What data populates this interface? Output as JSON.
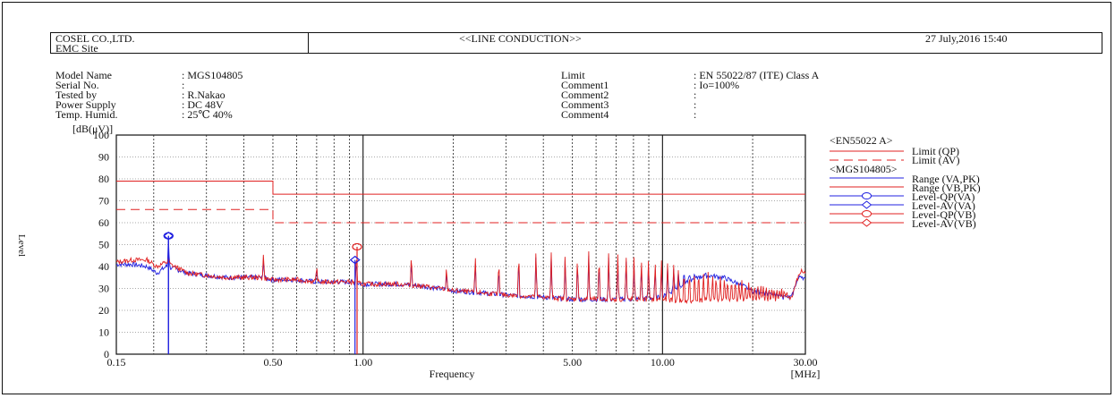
{
  "header": {
    "company": "COSEL CO.,LTD.",
    "site": "EMC Site",
    "title": "<<LINE CONDUCTION>>",
    "datetime": "27 July,2016 15:40"
  },
  "info_left": [
    {
      "label": "Model Name",
      "value": ": MGS104805"
    },
    {
      "label": "Serial No.",
      "value": ":"
    },
    {
      "label": "Tested by",
      "value": ": R.Nakao"
    },
    {
      "label": "Power Supply",
      "value": ": DC 48V"
    },
    {
      "label": "Temp. Humid.",
      "value": ": 25℃ 40%"
    }
  ],
  "info_right": [
    {
      "label": "Limit",
      "value": ": EN 55022/87 (ITE) Class A"
    },
    {
      "label": "Comment1",
      "value": ": Io=100%"
    },
    {
      "label": "Comment2",
      "value": ":"
    },
    {
      "label": "Comment3",
      "value": ":"
    },
    {
      "label": "Comment4",
      "value": ":"
    }
  ],
  "legend": {
    "group1_title": "<EN55022 A>",
    "group2_title": "<MGS104805>",
    "items": [
      {
        "label": "Limit (QP)",
        "color": "#e02020",
        "style": "solid",
        "marker": "none"
      },
      {
        "label": "Limit (AV)",
        "color": "#e02020",
        "style": "dashed",
        "marker": "none"
      },
      {
        "label": "Range (VA,PK)",
        "color": "#2020e0",
        "style": "solid",
        "marker": "none"
      },
      {
        "label": "Range (VB,PK)",
        "color": "#e02020",
        "style": "solid",
        "marker": "none"
      },
      {
        "label": "Level-QP(VA)",
        "color": "#2020e0",
        "style": "solid",
        "marker": "circle"
      },
      {
        "label": "Level-AV(VA)",
        "color": "#2020e0",
        "style": "solid",
        "marker": "diamond"
      },
      {
        "label": "Level-QP(VB)",
        "color": "#e02020",
        "style": "solid",
        "marker": "circle"
      },
      {
        "label": "Level-AV(VB)",
        "color": "#e02020",
        "style": "solid",
        "marker": "diamond"
      }
    ]
  },
  "chart_data": {
    "type": "line",
    "xlabel": "Frequency",
    "xunit": "[MHz]",
    "ylabel_unit": "[dB(μV)]",
    "ylabel": "Level",
    "xscale": "log",
    "xlim": [
      0.15,
      30
    ],
    "ylim": [
      0,
      100
    ],
    "x_ticks": [
      0.15,
      0.5,
      1.0,
      5.0,
      10.0,
      30.0
    ],
    "x_tick_labels": [
      "0.15",
      "0.50",
      "1.00",
      "5.00",
      "10.00",
      "30.00"
    ],
    "y_ticks": [
      0,
      10,
      20,
      30,
      40,
      50,
      60,
      70,
      80,
      90,
      100
    ],
    "y_tick_labels": [
      "0",
      "10",
      "20",
      "30",
      "40",
      "50",
      "60",
      "70",
      "80",
      "90",
      "100"
    ],
    "limits": [
      {
        "name": "Limit (QP)",
        "points": [
          [
            0.15,
            79
          ],
          [
            0.5,
            79
          ],
          [
            0.5,
            73
          ],
          [
            30,
            73
          ]
        ]
      },
      {
        "name": "Limit (AV)",
        "points": [
          [
            0.15,
            66
          ],
          [
            0.5,
            66
          ],
          [
            0.5,
            60
          ],
          [
            30,
            60
          ]
        ]
      }
    ],
    "series": [
      {
        "name": "Range (VA,PK)",
        "color": "#2020e0",
        "points": [
          [
            0.15,
            41
          ],
          [
            0.17,
            41
          ],
          [
            0.19,
            40
          ],
          [
            0.205,
            37
          ],
          [
            0.22,
            40
          ],
          [
            0.235,
            39
          ],
          [
            0.26,
            37
          ],
          [
            0.3,
            36
          ],
          [
            0.35,
            35
          ],
          [
            0.4,
            35
          ],
          [
            0.45,
            35
          ],
          [
            0.5,
            34
          ],
          [
            0.6,
            34
          ],
          [
            0.7,
            33
          ],
          [
            0.8,
            33
          ],
          [
            0.9,
            33
          ],
          [
            1.0,
            32
          ],
          [
            1.3,
            32
          ],
          [
            1.6,
            31
          ],
          [
            2.0,
            29
          ],
          [
            2.5,
            28
          ],
          [
            3.0,
            27
          ],
          [
            4.0,
            26
          ],
          [
            5.0,
            25
          ],
          [
            6.0,
            25
          ],
          [
            8.0,
            25
          ],
          [
            10.0,
            26
          ],
          [
            12.0,
            33
          ],
          [
            14.0,
            36
          ],
          [
            16.0,
            35
          ],
          [
            18.0,
            32
          ],
          [
            20.0,
            29
          ],
          [
            25.0,
            26
          ],
          [
            27.0,
            26
          ],
          [
            28.0,
            33
          ],
          [
            29.0,
            36
          ],
          [
            30.0,
            34
          ]
        ]
      },
      {
        "name": "Range (VB,PK)",
        "color": "#e02020",
        "points": [
          [
            0.15,
            42
          ],
          [
            0.17,
            43
          ],
          [
            0.19,
            43
          ],
          [
            0.205,
            40
          ],
          [
            0.22,
            42
          ],
          [
            0.235,
            40
          ],
          [
            0.26,
            37
          ],
          [
            0.3,
            36
          ],
          [
            0.35,
            35
          ],
          [
            0.4,
            35
          ],
          [
            0.45,
            35
          ],
          [
            0.5,
            34
          ],
          [
            0.6,
            34
          ],
          [
            0.7,
            33
          ],
          [
            0.8,
            33
          ],
          [
            0.9,
            33
          ],
          [
            1.0,
            32
          ],
          [
            1.3,
            32
          ],
          [
            1.6,
            31
          ],
          [
            2.0,
            29
          ],
          [
            2.5,
            28
          ],
          [
            3.0,
            27
          ],
          [
            4.0,
            26
          ],
          [
            5.0,
            25
          ],
          [
            6.0,
            25
          ],
          [
            8.0,
            25
          ],
          [
            10.0,
            25
          ],
          [
            12.0,
            24
          ],
          [
            15.0,
            25
          ],
          [
            20.0,
            25
          ],
          [
            25.0,
            25
          ],
          [
            27.0,
            26
          ],
          [
            28.0,
            33
          ],
          [
            29.0,
            38
          ],
          [
            30.0,
            37
          ]
        ]
      }
    ],
    "peaks": [
      {
        "x": 0.224,
        "va": 54,
        "vb": 45
      },
      {
        "x": 0.465,
        "va": 44,
        "vb": 47
      },
      {
        "x": 0.7,
        "va": 40,
        "vb": 41
      },
      {
        "x": 0.95,
        "va": 44,
        "vb": 48
      },
      {
        "x": 1.45,
        "va": 43,
        "vb": 47
      },
      {
        "x": 1.9,
        "va": 38,
        "vb": 41
      },
      {
        "x": 2.37,
        "va": 43,
        "vb": 46
      },
      {
        "x": 2.84,
        "va": 40,
        "vb": 44
      },
      {
        "x": 3.31,
        "va": 45,
        "vb": 48
      },
      {
        "x": 3.78,
        "va": 46,
        "vb": 48
      },
      {
        "x": 4.25,
        "va": 45,
        "vb": 47
      },
      {
        "x": 4.73,
        "va": 46,
        "vb": 48
      },
      {
        "x": 5.2,
        "va": 44,
        "vb": 46
      },
      {
        "x": 5.67,
        "va": 45,
        "vb": 47
      },
      {
        "x": 6.14,
        "va": 44,
        "vb": 47
      },
      {
        "x": 6.61,
        "va": 45,
        "vb": 47
      },
      {
        "x": 7.09,
        "va": 43,
        "vb": 46
      },
      {
        "x": 7.56,
        "va": 44,
        "vb": 46
      },
      {
        "x": 8.03,
        "va": 43,
        "vb": 46
      },
      {
        "x": 8.5,
        "va": 42,
        "vb": 45
      },
      {
        "x": 8.98,
        "va": 42,
        "vb": 44
      },
      {
        "x": 9.45,
        "va": 41,
        "vb": 44
      },
      {
        "x": 9.92,
        "va": 40,
        "vb": 43
      },
      {
        "x": 10.4,
        "va": 40,
        "vb": 42
      },
      {
        "x": 10.9,
        "va": 39,
        "vb": 41
      },
      {
        "x": 11.3,
        "va": 38,
        "vb": 40
      },
      {
        "x": 11.8,
        "va": 38,
        "vb": 40
      },
      {
        "x": 12.3,
        "va": 37,
        "vb": 39
      },
      {
        "x": 12.8,
        "va": 37,
        "vb": 39
      },
      {
        "x": 13.2,
        "va": 36,
        "vb": 39
      },
      {
        "x": 13.7,
        "va": 36,
        "vb": 38
      },
      {
        "x": 14.2,
        "va": 35,
        "vb": 38
      },
      {
        "x": 14.7,
        "va": 34,
        "vb": 37
      },
      {
        "x": 15.1,
        "va": 34,
        "vb": 37
      },
      {
        "x": 15.6,
        "va": 33,
        "vb": 36
      },
      {
        "x": 16.1,
        "va": 33,
        "vb": 36
      },
      {
        "x": 16.5,
        "va": 32,
        "vb": 35
      },
      {
        "x": 17.0,
        "va": 32,
        "vb": 35
      },
      {
        "x": 17.5,
        "va": 31,
        "vb": 35
      },
      {
        "x": 18.0,
        "va": 31,
        "vb": 34
      },
      {
        "x": 18.4,
        "va": 30,
        "vb": 34
      },
      {
        "x": 18.9,
        "va": 30,
        "vb": 33
      },
      {
        "x": 19.4,
        "va": 30,
        "vb": 33
      },
      {
        "x": 19.8,
        "va": 29,
        "vb": 33
      },
      {
        "x": 20.3,
        "va": 29,
        "vb": 32
      },
      {
        "x": 20.8,
        "va": 29,
        "vb": 32
      },
      {
        "x": 21.3,
        "va": 28,
        "vb": 32
      },
      {
        "x": 21.7,
        "va": 28,
        "vb": 31
      },
      {
        "x": 22.2,
        "va": 28,
        "vb": 31
      },
      {
        "x": 22.7,
        "va": 28,
        "vb": 31
      },
      {
        "x": 23.2,
        "va": 27,
        "vb": 31
      },
      {
        "x": 23.6,
        "va": 27,
        "vb": 30
      },
      {
        "x": 24.1,
        "va": 27,
        "vb": 30
      },
      {
        "x": 24.6,
        "va": 27,
        "vb": 30
      },
      {
        "x": 25.0,
        "va": 27,
        "vb": 30
      },
      {
        "x": 25.5,
        "va": 27,
        "vb": 30
      },
      {
        "x": 26.0,
        "va": 26,
        "vb": 29
      }
    ],
    "measurements": [
      {
        "name": "Level-QP(VA)",
        "x": 0.224,
        "y": 54
      },
      {
        "name": "Level-AV(VA)",
        "x": 0.224,
        "y": 54
      },
      {
        "name": "Level-QP(VB)",
        "x": 0.955,
        "y": 49
      },
      {
        "name": "Level-AV(VA)",
        "x": 0.94,
        "y": 43
      }
    ]
  }
}
